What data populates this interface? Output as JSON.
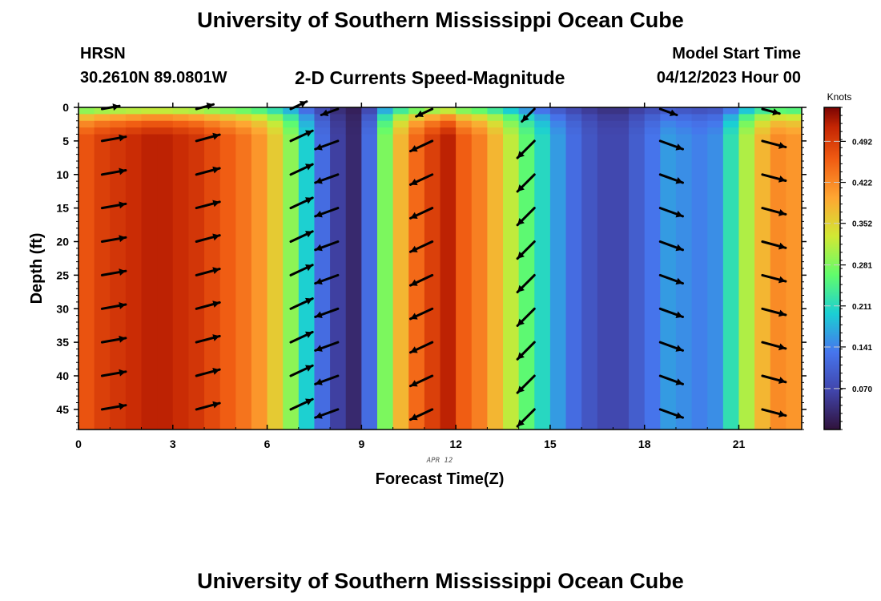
{
  "header": {
    "title": "University of Southern Mississippi Ocean Cube",
    "station": "HRSN",
    "coordinates": "30.2610N  89.0801W",
    "subtitle": "2-D Currents Speed-Magnitude",
    "model_start_label": "Model Start Time",
    "model_start_value": "04/12/2023 Hour 00"
  },
  "footer": {
    "title": "University of Southern Mississippi Ocean Cube"
  },
  "chart_data": {
    "type": "heatmap",
    "title": "2-D Currents Speed-Magnitude",
    "xlabel": "Forecast Time(Z)",
    "ylabel": "Depth (ft)",
    "date_label": "APR 12",
    "xlim": [
      0,
      23
    ],
    "ylim": [
      0,
      48
    ],
    "x_ticks": [
      0,
      3,
      6,
      9,
      12,
      15,
      18,
      21
    ],
    "y_ticks": [
      0,
      5,
      10,
      15,
      20,
      25,
      30,
      35,
      40,
      45
    ],
    "colorbar": {
      "label": "Knots",
      "range": [
        0,
        0.55
      ],
      "ticks": [
        "0.492",
        "0.422",
        "0.352",
        "0.281",
        "0.211",
        "0.141",
        "0.070"
      ],
      "colormap": "turbo"
    },
    "time_columns": [
      0.0,
      0.5,
      1.0,
      1.5,
      2.0,
      2.5,
      3.0,
      3.5,
      4.0,
      4.5,
      5.0,
      5.5,
      6.0,
      6.5,
      7.0,
      7.5,
      8.0,
      8.5,
      9.0,
      9.5,
      10.0,
      10.5,
      11.0,
      11.5,
      12.0,
      12.5,
      13.0,
      13.5,
      14.0,
      14.5,
      15.0,
      15.5,
      16.0,
      16.5,
      17.0,
      17.5,
      18.0,
      18.5,
      19.0,
      19.5,
      20.0,
      20.5,
      21.0,
      21.5,
      22.0,
      22.5
    ],
    "speed_at_depth_knots": [
      0.47,
      0.49,
      0.5,
      0.51,
      0.52,
      0.52,
      0.51,
      0.5,
      0.48,
      0.46,
      0.44,
      0.41,
      0.36,
      0.29,
      0.2,
      0.12,
      0.06,
      0.03,
      0.12,
      0.28,
      0.38,
      0.45,
      0.49,
      0.52,
      0.46,
      0.43,
      0.38,
      0.32,
      0.26,
      0.21,
      0.16,
      0.12,
      0.09,
      0.07,
      0.07,
      0.1,
      0.13,
      0.16,
      0.15,
      0.14,
      0.15,
      0.22,
      0.31,
      0.38,
      0.42,
      0.41
    ],
    "vector_times": [
      0.75,
      3.75,
      6.75,
      8.25,
      11.25,
      14.5,
      18.5,
      21.75
    ],
    "vector_depths": [
      0,
      5,
      10,
      15,
      20,
      25,
      30,
      35,
      40,
      45
    ],
    "vector_direction_deg": [
      80,
      75,
      65,
      250,
      245,
      225,
      110,
      105
    ]
  }
}
